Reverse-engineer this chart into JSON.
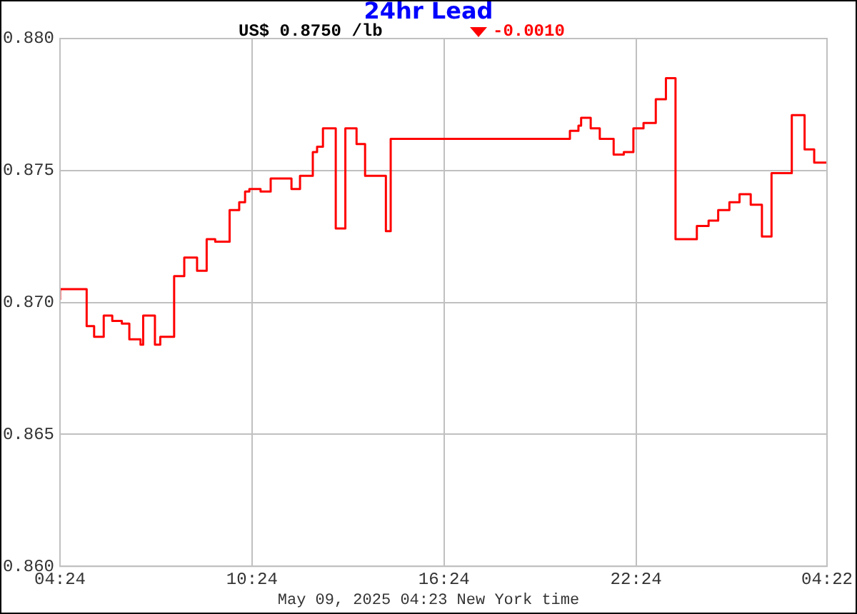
{
  "chart_data": {
    "type": "step",
    "title": "24hr Lead",
    "annotations": [
      "US$ 0.8750 /lb",
      "-0.0010",
      "May 09, 2025 04:23 New York time"
    ],
    "x": [
      "2025-05-08T04:24",
      "2025-05-08T05:14",
      "2025-05-08T05:28",
      "2025-05-08T05:46",
      "2025-05-08T06:02",
      "2025-05-08T06:20",
      "2025-05-08T06:34",
      "2025-05-08T06:55",
      "2025-05-08T07:00",
      "2025-05-08T07:22",
      "2025-05-08T07:32",
      "2025-05-08T07:58",
      "2025-05-08T08:17",
      "2025-05-08T08:41",
      "2025-05-08T08:59",
      "2025-05-08T09:15",
      "2025-05-08T09:42",
      "2025-05-08T10:00",
      "2025-05-08T10:11",
      "2025-05-08T10:19",
      "2025-05-08T10:40",
      "2025-05-08T10:59",
      "2025-05-08T11:38",
      "2025-05-08T11:54",
      "2025-05-08T12:18",
      "2025-05-08T12:26",
      "2025-05-08T12:37",
      "2025-05-08T13:01",
      "2025-05-08T13:19",
      "2025-05-08T13:40",
      "2025-05-08T13:56",
      "2025-05-08T14:35",
      "2025-05-08T14:44",
      "2025-05-08T20:20",
      "2025-05-08T20:36",
      "2025-05-08T20:41",
      "2025-05-08T20:59",
      "2025-05-08T21:16",
      "2025-05-08T21:42",
      "2025-05-08T22:01",
      "2025-05-08T22:19",
      "2025-05-08T22:38",
      "2025-05-08T23:01",
      "2025-05-08T23:20",
      "2025-05-08T23:38",
      "2025-05-09T00:18",
      "2025-05-09T00:40",
      "2025-05-09T00:58",
      "2025-05-09T01:19",
      "2025-05-09T01:38",
      "2025-05-09T01:59",
      "2025-05-09T02:20",
      "2025-05-09T02:38",
      "2025-05-09T03:16",
      "2025-05-09T03:40",
      "2025-05-09T03:58",
      "2025-05-09T04:19",
      "2025-05-09T04:22"
    ],
    "series": [
      {
        "color": "#ff0000",
        "values": [
          0.8701,
          0.8705,
          0.8691,
          0.8687,
          0.8695,
          0.8693,
          0.8692,
          0.8686,
          0.8684,
          0.8695,
          0.8684,
          0.8687,
          0.871,
          0.8717,
          0.8712,
          0.8724,
          0.8723,
          0.8735,
          0.8738,
          0.8742,
          0.8743,
          0.8742,
          0.8747,
          0.8743,
          0.8748,
          0.8757,
          0.8759,
          0.8766,
          0.8728,
          0.8766,
          0.876,
          0.8748,
          0.8727,
          0.8762,
          0.8765,
          0.8767,
          0.877,
          0.8766,
          0.8762,
          0.8756,
          0.8757,
          0.8766,
          0.8768,
          0.8777,
          0.8785,
          0.8724,
          0.8729,
          0.8731,
          0.8735,
          0.8738,
          0.8741,
          0.8737,
          0.8725,
          0.8749,
          0.8771,
          0.8758,
          0.8753,
          0.8753
        ]
      }
    ],
    "xlim": [
      "2025-05-08T04:24",
      "2025-05-09T04:22"
    ],
    "xticks": [
      {
        "value": "2025-05-08T04:24",
        "label": "04:24"
      },
      {
        "value": "2025-05-08T10:24",
        "label": "10:24"
      },
      {
        "value": "2025-05-08T16:24",
        "label": "16:24"
      },
      {
        "value": "2025-05-08T22:24",
        "label": "22:24"
      },
      {
        "value": "2025-05-09T04:22",
        "label": "04:22"
      }
    ],
    "ylim": [
      0.86,
      0.88
    ],
    "yticks": [
      {
        "value": 0.86,
        "label": "0.860"
      },
      0.865,
      {
        "value": 0.87,
        "label": "0.870"
      },
      0.875,
      {
        "value": 0.88,
        "label": "0.880"
      }
    ],
    "grid": true,
    "legend": false,
    "marker": "none",
    "line_style": "solid"
  }
}
